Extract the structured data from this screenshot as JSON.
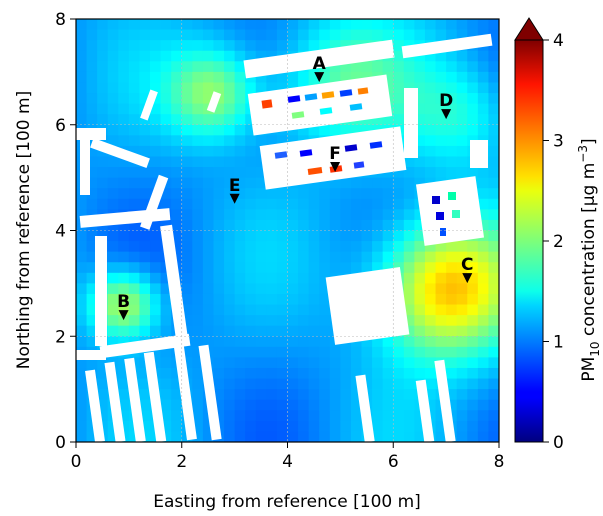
{
  "chart_data": {
    "type": "heatmap",
    "title": "",
    "xlabel": "Easting from reference [100 m]",
    "ylabel": "Northing from reference [100 m]",
    "xlim": [
      0,
      8
    ],
    "ylim": [
      0,
      8
    ],
    "xticks": [
      "0",
      "2",
      "4",
      "6",
      "8"
    ],
    "yticks": [
      "0",
      "2",
      "4",
      "6",
      "8"
    ],
    "grid": true,
    "colormap": "jet",
    "colorbar": {
      "label_main": "PM",
      "label_sub": "10",
      "label_rest": " concentration [μg m",
      "label_sup": "−3",
      "label_end": "]",
      "range": [
        0,
        4
      ],
      "ticks": [
        "0",
        "1",
        "2",
        "3",
        "4"
      ],
      "extend": "max"
    },
    "markers": [
      {
        "label": "A",
        "x": 4.6,
        "y": 6.9
      },
      {
        "label": "B",
        "x": 0.9,
        "y": 2.4
      },
      {
        "label": "C",
        "x": 7.4,
        "y": 3.1
      },
      {
        "label": "D",
        "x": 7.0,
        "y": 6.2
      },
      {
        "label": "E",
        "x": 3.0,
        "y": 4.6
      },
      {
        "label": "F",
        "x": 4.9,
        "y": 5.2
      }
    ],
    "field_hotspots": [
      {
        "x": 7.0,
        "y": 2.9,
        "value": 2.8,
        "spread": 0.9
      },
      {
        "x": 0.9,
        "y": 2.6,
        "value": 2.3,
        "spread": 0.45
      },
      {
        "x": 2.6,
        "y": 6.6,
        "value": 2.1,
        "spread": 0.6
      },
      {
        "x": 5.0,
        "y": 6.8,
        "value": 1.8,
        "spread": 0.9
      },
      {
        "x": 7.3,
        "y": 6.2,
        "value": 1.6,
        "spread": 0.7
      }
    ],
    "field_background": 1.1
  }
}
